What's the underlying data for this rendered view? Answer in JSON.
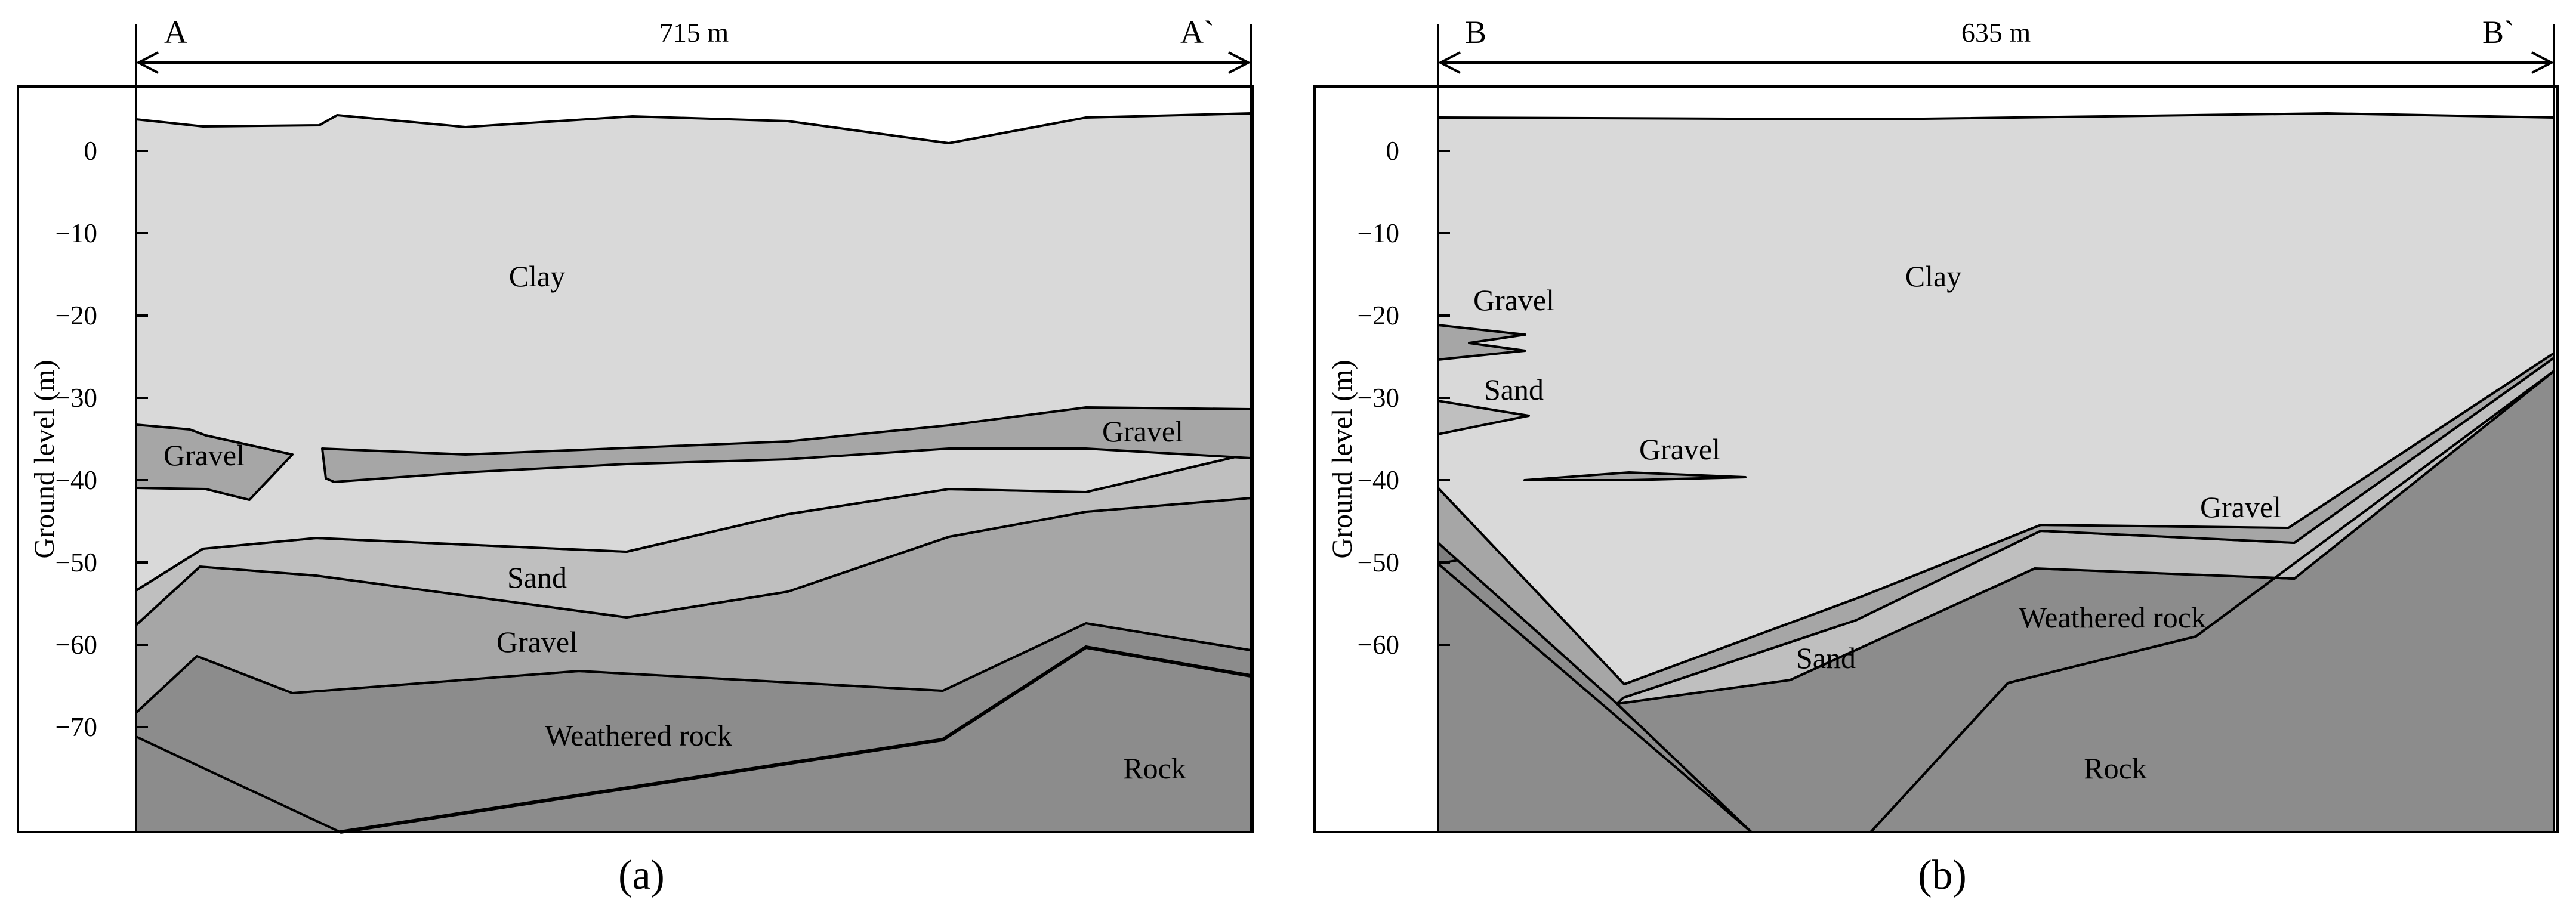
{
  "colors": {
    "clay": "#d9d9d9",
    "sand": "#bfbfbf",
    "gravel": "#a6a6a6",
    "weathered_rock": "#8c8c8c",
    "rock": "#7f7f7f",
    "outline": "#000000"
  },
  "panels": [
    {
      "tag": "(a)",
      "ylabel": "Ground level (m)",
      "y_ticks": [
        0,
        -10,
        -20,
        -30,
        -40,
        -50,
        -60,
        -70
      ],
      "span_label": "715 m",
      "start_label": "A",
      "end_label": "A`",
      "layer_labels": {
        "clay": "Clay",
        "gravel_left": "Gravel",
        "gravel_right": "Gravel",
        "sand": "Sand",
        "gravel_mid": "Gravel",
        "weathered_rock": "Weathered rock",
        "rock": "Rock"
      }
    },
    {
      "tag": "(b)",
      "ylabel": "Ground level (m)",
      "y_ticks": [
        0,
        -10,
        -20,
        -30,
        -40,
        -50,
        -60
      ],
      "span_label": "635 m",
      "start_label": "B",
      "end_label": "B`",
      "layer_labels": {
        "clay": "Clay",
        "gravel_upper": "Gravel",
        "sand_left": "Sand",
        "gravel_lens": "Gravel",
        "gravel_right": "Gravel",
        "weathered_rock": "Weathered rock",
        "sand_bottom": "Sand",
        "rock": "Rock"
      }
    }
  ]
}
